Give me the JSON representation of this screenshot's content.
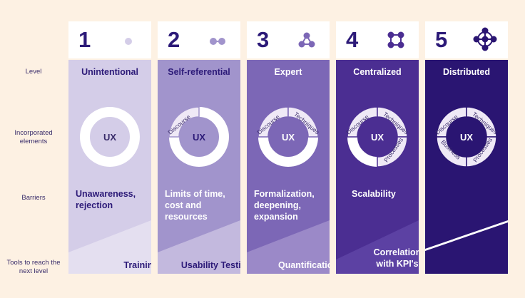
{
  "row_labels": {
    "level": "Level",
    "elements": "Incorporated elements",
    "barriers": "Barriers",
    "tools": "Tools to reach the next level"
  },
  "core_label": "UX",
  "columns": [
    {
      "number": "1",
      "level": "Unintentional",
      "barrier": "Unawareness, rejection",
      "tool": "Training",
      "color": "#d4cde8"
    },
    {
      "number": "2",
      "level": "Self-referential",
      "barrier": "Limits of time, cost and resources",
      "tool": "Usability Testing",
      "color": "#a194cc"
    },
    {
      "number": "3",
      "level": "Expert",
      "barrier": "Formalization, deepening, expansion",
      "tool": "Quantification",
      "color": "#7c67b6"
    },
    {
      "number": "4",
      "level": "Centralized",
      "barrier": "Scalability",
      "tool": "Correlation with KPI's",
      "color": "#4b2e92"
    },
    {
      "number": "5",
      "level": "Distributed",
      "barrier": "",
      "tool": "",
      "color": "#2a1572"
    }
  ],
  "ring_segments": {
    "discourse": "Discourse",
    "techniques": "Techniques",
    "processes": "Processes",
    "business": "Business"
  },
  "colors": {
    "background": "#fdf1e3",
    "header": "#ffffff",
    "number": "#2c1a78",
    "label_text": "#3a2d6b"
  }
}
